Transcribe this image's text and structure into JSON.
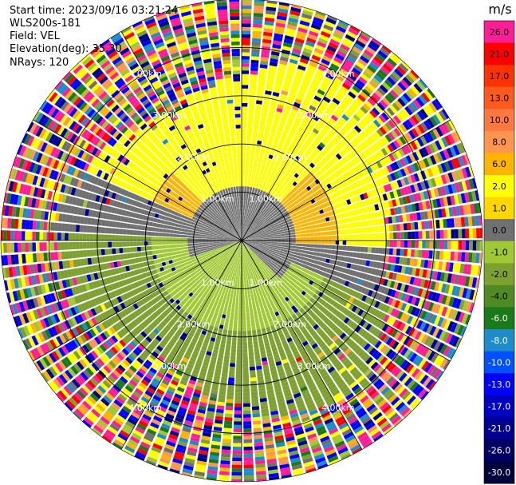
{
  "header": {
    "start_time": "Start time: 2023/09/16 03:21:24",
    "instrument": "WLS200s-181",
    "field": "Field: VEL",
    "elevation": "Elevation(deg): 35.30",
    "nrays": "NRays: 120"
  },
  "colorbar": {
    "unit": "m/s",
    "levels": [
      {
        "label": "26.0",
        "color": "#ff1e96"
      },
      {
        "label": "21.0",
        "color": "#ff0000"
      },
      {
        "label": "17.0",
        "color": "#ff3300"
      },
      {
        "label": "13.0",
        "color": "#ff5a1e"
      },
      {
        "label": "10.0",
        "color": "#ff7840"
      },
      {
        "label": "8.0",
        "color": "#ff9650"
      },
      {
        "label": "6.0",
        "color": "#ffb400"
      },
      {
        "label": "2.0",
        "color": "#ffff00"
      },
      {
        "label": "1.0",
        "color": "#ffd700"
      },
      {
        "label": "0.0",
        "color": "#707070"
      },
      {
        "label": "-1.0",
        "color": "#a0c832"
      },
      {
        "label": "-2.0",
        "color": "#7ea030"
      },
      {
        "label": "-4.0",
        "color": "#4f8a22"
      },
      {
        "label": "-6.0",
        "color": "#1a7a1a"
      },
      {
        "label": "-8.0",
        "color": "#1e8cc8"
      },
      {
        "label": "-10.0",
        "color": "#0050ff"
      },
      {
        "label": "-13.0",
        "color": "#0000ff"
      },
      {
        "label": "-17.0",
        "color": "#0000c0"
      },
      {
        "label": "-21.0",
        "color": "#000090"
      },
      {
        "label": "-26.0",
        "color": "#000064"
      },
      {
        "label": "-30.0",
        "color": "#00003c"
      }
    ]
  },
  "chart_data": {
    "type": "ppi-polar",
    "title": "Start time: 2023/09/16 03:21:24",
    "field": "VEL",
    "elevation_deg": 35.3,
    "n_rays": 120,
    "units": "m/s",
    "range_rings_km": [
      1,
      2,
      3,
      4
    ],
    "ring_labels": [
      "1.00km",
      "2.00km",
      "3.00km",
      "4.00km"
    ],
    "max_range_km": 5.0,
    "spoke_angles_deg": [
      0,
      30,
      60,
      90,
      120,
      150,
      180,
      210,
      240,
      270,
      300,
      330
    ],
    "velocity_pattern": {
      "inner_gray_zero_band": "about 0.0 m/s near origin",
      "north_sector": "1.0 to 2.0 m/s (yellow)",
      "south_sector": "-1.0 to -4.0 m/s (green)",
      "outer_rings": "noisy / random values"
    }
  }
}
